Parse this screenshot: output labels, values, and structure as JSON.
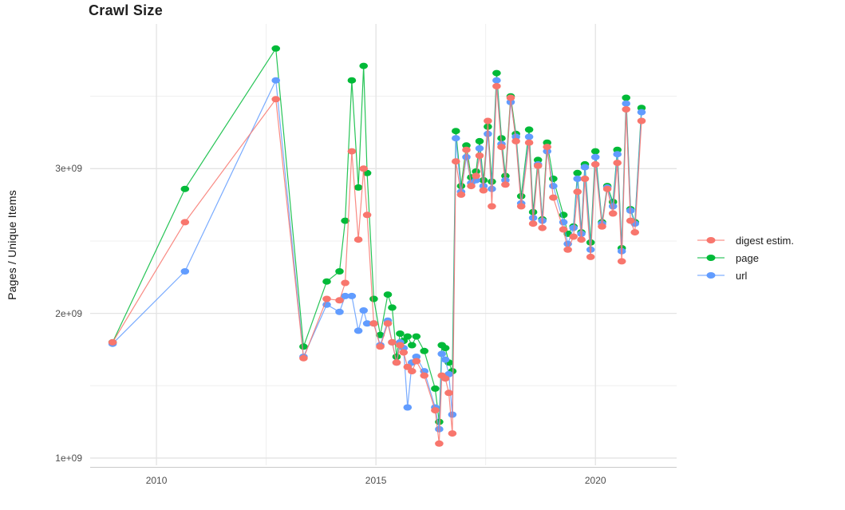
{
  "chart_data": {
    "type": "line",
    "title": "Crawl Size",
    "ylabel": "Pages / Unique Items",
    "xlabel": "",
    "grid": true,
    "legend_position": "right",
    "background": "#ffffff",
    "grid_major_color": "#e3e3e3",
    "grid_minor_color": "#efefef",
    "axis_line_color": "#c9c9c9",
    "x_range": [
      2008.49,
      2021.85
    ],
    "ylim": [
      950000000.0,
      4000000000.0
    ],
    "x_ticks": [
      {
        "value": 2010,
        "label": "2010"
      },
      {
        "value": 2015,
        "label": "2015"
      },
      {
        "value": 2020,
        "label": "2020"
      }
    ],
    "x_minor_ticks": [
      2012.5,
      2017.5
    ],
    "y_ticks": [
      {
        "value": 1000000000.0,
        "label": "1e+09"
      },
      {
        "value": 2000000000.0,
        "label": "2e+09"
      },
      {
        "value": 3000000000.0,
        "label": "3e+09"
      }
    ],
    "y_minor_ticks": [
      1500000000.0,
      2500000000.0,
      3500000000.0
    ],
    "x": [
      2009.0,
      2010.65,
      2012.72,
      2013.35,
      2013.88,
      2014.17,
      2014.3,
      2014.45,
      2014.6,
      2014.72,
      2014.8,
      2014.95,
      2015.1,
      2015.27,
      2015.37,
      2015.47,
      2015.55,
      2015.63,
      2015.72,
      2015.82,
      2015.92,
      2016.1,
      2016.35,
      2016.44,
      2016.5,
      2016.58,
      2016.66,
      2016.74,
      2016.82,
      2016.94,
      2017.06,
      2017.17,
      2017.28,
      2017.36,
      2017.45,
      2017.55,
      2017.64,
      2017.75,
      2017.86,
      2017.95,
      2018.07,
      2018.19,
      2018.31,
      2018.49,
      2018.58,
      2018.69,
      2018.79,
      2018.9,
      2019.04,
      2019.27,
      2019.37,
      2019.5,
      2019.59,
      2019.68,
      2019.76,
      2019.89,
      2020.0,
      2020.15,
      2020.27,
      2020.4,
      2020.5,
      2020.6,
      2020.7,
      2020.8,
      2020.9,
      2021.05
    ],
    "series": [
      {
        "name": "digest estim.",
        "color": "#F8766D",
        "values": [
          1800000000.0,
          2630000000.0,
          3480000000.0,
          1690000000.0,
          2100000000.0,
          2090000000.0,
          2210000000.0,
          3120000000.0,
          2510000000.0,
          3000000000.0,
          2680000000.0,
          1930000000.0,
          1770000000.0,
          1930000000.0,
          1800000000.0,
          1660000000.0,
          1780000000.0,
          1730000000.0,
          1630000000.0,
          1600000000.0,
          1670000000.0,
          1570000000.0,
          1330000000.0,
          1100000000.0,
          1570000000.0,
          1550000000.0,
          1450000000.0,
          1170000000.0,
          3050000000.0,
          2820000000.0,
          3130000000.0,
          2880000000.0,
          2950000000.0,
          3090000000.0,
          2850000000.0,
          3330000000.0,
          2740000000.0,
          3570000000.0,
          3150000000.0,
          2890000000.0,
          3490000000.0,
          3190000000.0,
          2740000000.0,
          3180000000.0,
          2620000000.0,
          3020000000.0,
          2590000000.0,
          3150000000.0,
          2800000000.0,
          2580000000.0,
          2440000000.0,
          2530000000.0,
          2840000000.0,
          2510000000.0,
          2930000000.0,
          2390000000.0,
          3030000000.0,
          2600000000.0,
          2860000000.0,
          2690000000.0,
          3040000000.0,
          2360000000.0,
          3410000000.0,
          2640000000.0,
          2560000000.0,
          3330000000.0
        ]
      },
      {
        "name": "page",
        "color": "#00BA38",
        "values": [
          1800000000.0,
          2860000000.0,
          3830000000.0,
          1770000000.0,
          2220000000.0,
          2290000000.0,
          2640000000.0,
          3610000000.0,
          2870000000.0,
          3710000000.0,
          2970000000.0,
          2100000000.0,
          1850000000.0,
          2130000000.0,
          2040000000.0,
          1700000000.0,
          1860000000.0,
          1810000000.0,
          1840000000.0,
          1780000000.0,
          1840000000.0,
          1740000000.0,
          1480000000.0,
          1250000000.0,
          1780000000.0,
          1760000000.0,
          1660000000.0,
          1600000000.0,
          3260000000.0,
          2880000000.0,
          3160000000.0,
          2940000000.0,
          2980000000.0,
          3190000000.0,
          2920000000.0,
          3290000000.0,
          2910000000.0,
          3660000000.0,
          3210000000.0,
          2950000000.0,
          3500000000.0,
          3240000000.0,
          2810000000.0,
          3270000000.0,
          2700000000.0,
          3060000000.0,
          2650000000.0,
          3180000000.0,
          2930000000.0,
          2680000000.0,
          2550000000.0,
          2600000000.0,
          2970000000.0,
          2560000000.0,
          3030000000.0,
          2490000000.0,
          3120000000.0,
          2630000000.0,
          2880000000.0,
          2770000000.0,
          3130000000.0,
          2450000000.0,
          3490000000.0,
          2720000000.0,
          2630000000.0,
          3420000000.0
        ]
      },
      {
        "name": "url",
        "color": "#619CFF",
        "values": [
          1790000000.0,
          2290000000.0,
          3610000000.0,
          1700000000.0,
          2060000000.0,
          2010000000.0,
          2120000000.0,
          2120000000.0,
          1880000000.0,
          2020000000.0,
          1930000000.0,
          1930000000.0,
          1780000000.0,
          1950000000.0,
          1800000000.0,
          1660000000.0,
          1800000000.0,
          1760000000.0,
          1350000000.0,
          1660000000.0,
          1700000000.0,
          1600000000.0,
          1350000000.0,
          1200000000.0,
          1720000000.0,
          1680000000.0,
          1580000000.0,
          1300000000.0,
          3210000000.0,
          2840000000.0,
          3080000000.0,
          2900000000.0,
          2920000000.0,
          3140000000.0,
          2880000000.0,
          3240000000.0,
          2860000000.0,
          3610000000.0,
          3170000000.0,
          2920000000.0,
          3460000000.0,
          3220000000.0,
          2760000000.0,
          3220000000.0,
          2660000000.0,
          3030000000.0,
          2640000000.0,
          3120000000.0,
          2880000000.0,
          2630000000.0,
          2480000000.0,
          2590000000.0,
          2930000000.0,
          2550000000.0,
          3010000000.0,
          2440000000.0,
          3080000000.0,
          2620000000.0,
          2870000000.0,
          2740000000.0,
          3100000000.0,
          2430000000.0,
          3450000000.0,
          2710000000.0,
          2620000000.0,
          3390000000.0
        ]
      }
    ]
  }
}
